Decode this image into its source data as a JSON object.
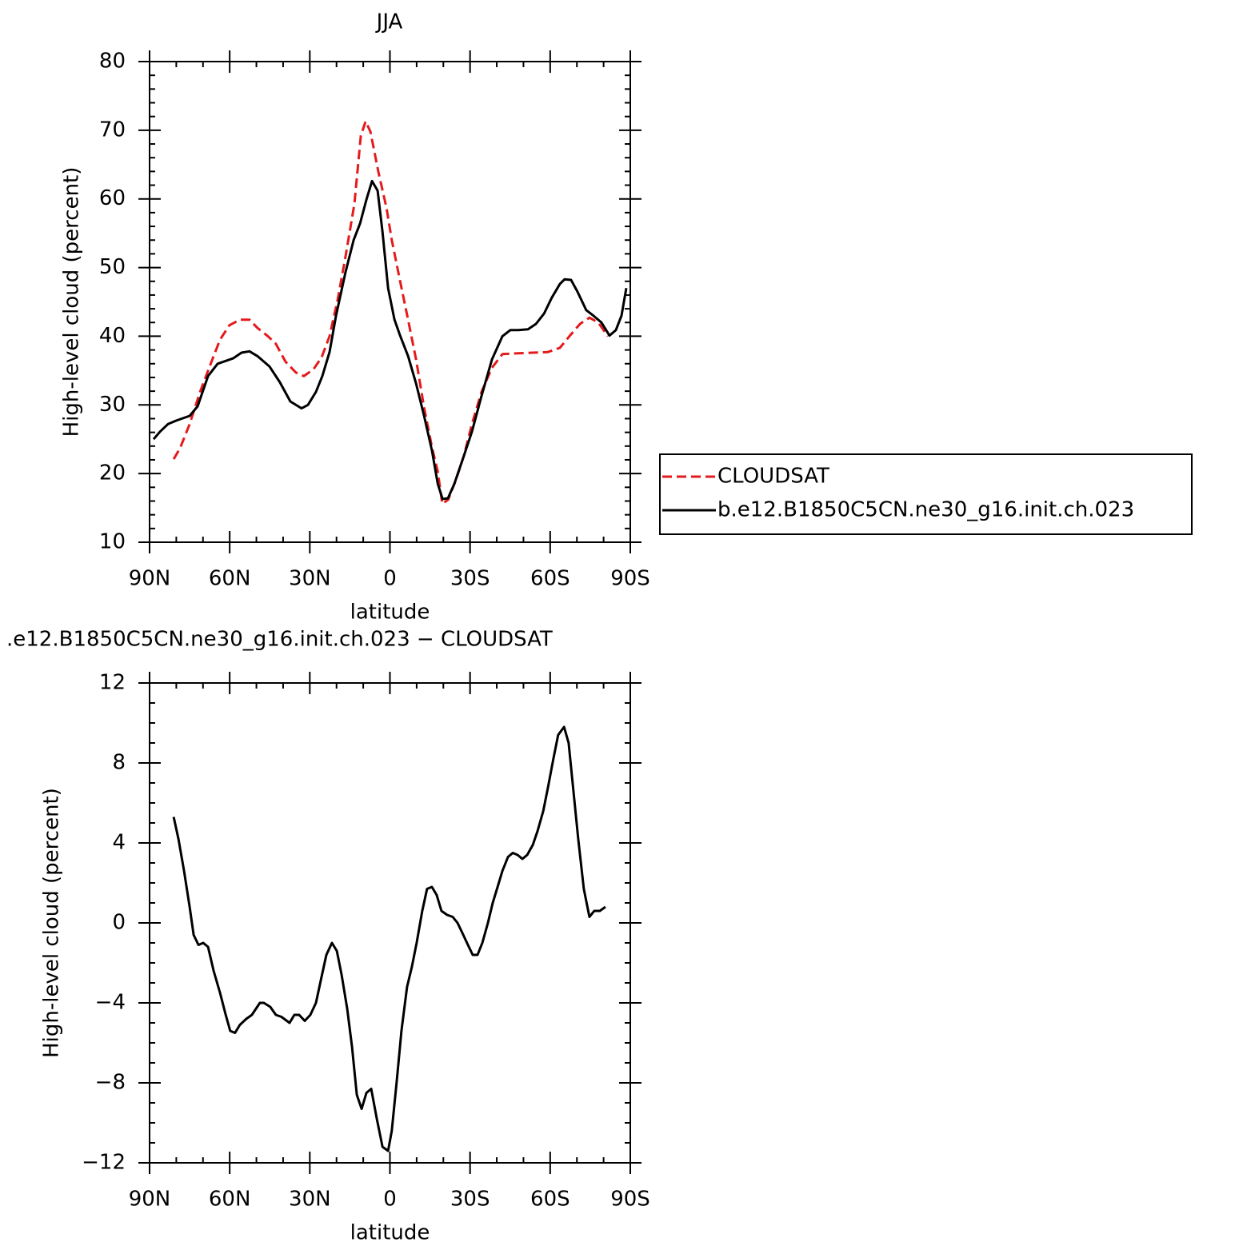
{
  "chart_data": [
    {
      "type": "line",
      "title": "JJA",
      "xlabel": "latitude",
      "ylabel": "High-level cloud (percent)",
      "xlim": [
        90,
        -90
      ],
      "xticks": [
        {
          "value": 90,
          "label": "90N"
        },
        {
          "value": 60,
          "label": "60N"
        },
        {
          "value": 30,
          "label": "30N"
        },
        0,
        {
          "value": -30,
          "label": "30S"
        },
        {
          "value": -60,
          "label": "60S"
        },
        {
          "value": -90,
          "label": "90S"
        }
      ],
      "ylim": [
        10,
        80
      ],
      "yticks": [
        10,
        20,
        30,
        40,
        50,
        60,
        70,
        80
      ],
      "legend": "right",
      "series": [
        {
          "name": "CLOUDSAT",
          "color": "#e41a1c",
          "dashed": true,
          "x": [
            81.0,
            78.6,
            75.0,
            71.1,
            67.5,
            63.6,
            60.1,
            56.2,
            52.6,
            49.6,
            45.7,
            42.7,
            39.1,
            35.2,
            32.2,
            28.6,
            25.6,
            22.6,
            19.6,
            16.6,
            13.3,
            10.9,
            9.1,
            7.3,
            4.3,
            1.3,
            -0.7,
            -3.7,
            -6.8,
            -9.8,
            -12.8,
            -15.8,
            -17.9,
            -19.6,
            -21.8,
            -24.7,
            -27.7,
            -30.7,
            -34.3,
            -38.2,
            -42.1,
            -47.2,
            -53.2,
            -59.1,
            -63.6,
            -67.2,
            -71.2,
            -74.7,
            -78.0,
            -81.6
          ],
          "values": [
            22.1,
            23.7,
            27.2,
            31.9,
            35.6,
            39.5,
            41.6,
            42.4,
            42.4,
            41.2,
            40.0,
            38.9,
            36.3,
            34.7,
            34.2,
            35.2,
            36.9,
            40.0,
            45.3,
            51.7,
            59.3,
            69.2,
            71.3,
            69.8,
            63.9,
            58.7,
            54.0,
            48.2,
            42.4,
            36.6,
            29.6,
            23.7,
            20.3,
            15.6,
            16.2,
            19.1,
            22.6,
            27.2,
            31.9,
            35.4,
            37.4,
            37.5,
            37.6,
            37.7,
            38.3,
            40.0,
            41.8,
            42.7,
            42.0,
            40.0
          ]
        },
        {
          "name": "b.e12.B1850C5CN.ne30_g16.init.ch.023",
          "color": "#000000",
          "dashed": false,
          "x": [
            88.5,
            86.1,
            83.1,
            80.1,
            75.0,
            72.0,
            68.1,
            64.5,
            61.5,
            58.6,
            55.6,
            52.6,
            49.6,
            45.1,
            41.2,
            37.3,
            33.1,
            30.7,
            27.7,
            25.3,
            22.6,
            20.2,
            16.6,
            13.6,
            11.2,
            8.8,
            6.7,
            4.6,
            2.8,
            0.7,
            -1.7,
            -3.8,
            -6.8,
            -9.8,
            -12.8,
            -15.8,
            -17.9,
            -19.7,
            -21.7,
            -24.1,
            -27.7,
            -30.7,
            -34.3,
            -38.2,
            -42.1,
            -45.1,
            -48.1,
            -51.7,
            -54.7,
            -57.7,
            -60.6,
            -63.6,
            -65.4,
            -67.8,
            -70.2,
            -73.5,
            -76.2,
            -79.2,
            -82.2,
            -84.6,
            -86.7,
            -88.5
          ],
          "values": [
            25.0,
            26.1,
            27.2,
            27.7,
            28.4,
            29.8,
            34.2,
            36.0,
            36.4,
            36.8,
            37.6,
            37.8,
            37.1,
            35.6,
            33.3,
            30.5,
            29.5,
            30.0,
            31.9,
            34.2,
            37.7,
            43.0,
            49.4,
            54.0,
            56.4,
            59.9,
            62.6,
            61.2,
            55.2,
            47.0,
            42.4,
            40.1,
            37.1,
            33.1,
            28.4,
            23.2,
            18.5,
            16.3,
            16.4,
            18.5,
            22.6,
            26.1,
            31.3,
            36.6,
            40.0,
            40.9,
            40.9,
            41.0,
            41.8,
            43.3,
            45.6,
            47.6,
            48.3,
            48.2,
            46.5,
            43.8,
            43.0,
            42.0,
            40.1,
            40.9,
            43.0,
            47.0
          ]
        }
      ]
    },
    {
      "type": "line",
      "title": ".e12.B1850C5CN.ne30_g16.init.ch.023 − CLOUDSAT",
      "xlabel": "latitude",
      "ylabel": "High-level cloud (percent)",
      "xlim": [
        90,
        -90
      ],
      "xticks": [
        {
          "value": 90,
          "label": "90N"
        },
        {
          "value": 60,
          "label": "60N"
        },
        {
          "value": 30,
          "label": "30N"
        },
        0,
        {
          "value": -30,
          "label": "30S"
        },
        {
          "value": -60,
          "label": "60S"
        },
        {
          "value": -90,
          "label": "90S"
        }
      ],
      "ylim": [
        -12,
        12
      ],
      "yticks": [
        {
          "value": -12,
          "label": "−12"
        },
        {
          "value": -8,
          "label": "−8"
        },
        {
          "value": -4,
          "label": "−4"
        },
        0,
        4,
        8,
        12
      ],
      "series": [
        {
          "color": "#000000",
          "dashed": false,
          "x": [
            81.0,
            79.2,
            77.1,
            75.0,
            73.5,
            71.7,
            69.9,
            68.1,
            66.0,
            63.6,
            61.5,
            59.8,
            58.0,
            56.2,
            53.8,
            51.7,
            48.7,
            47.2,
            44.8,
            42.7,
            40.6,
            37.6,
            35.8,
            34.0,
            31.9,
            29.8,
            27.7,
            25.6,
            23.8,
            21.7,
            19.9,
            18.1,
            16.0,
            14.2,
            12.4,
            10.6,
            8.8,
            7.0,
            4.9,
            2.8,
            0.7,
            -0.7,
            -2.5,
            -4.3,
            -6.4,
            -8.2,
            -10.0,
            -12.1,
            -13.9,
            -15.7,
            -17.5,
            -19.3,
            -21.4,
            -23.5,
            -25.3,
            -27.1,
            -29.2,
            -31.0,
            -32.8,
            -34.6,
            -36.7,
            -38.5,
            -40.3,
            -42.1,
            -44.2,
            -46.0,
            -47.8,
            -49.6,
            -51.4,
            -53.5,
            -55.3,
            -57.4,
            -59.2,
            -61.2,
            -63.0,
            -65.2,
            -66.9,
            -68.7,
            -70.5,
            -72.6,
            -74.7,
            -76.5,
            -78.6,
            -80.7
          ],
          "values": [
            5.3,
            4.2,
            2.6,
            0.8,
            -0.6,
            -1.1,
            -1.0,
            -1.2,
            -2.4,
            -3.5,
            -4.6,
            -5.4,
            -5.5,
            -5.1,
            -4.8,
            -4.6,
            -4.0,
            -4.0,
            -4.2,
            -4.6,
            -4.7,
            -5.0,
            -4.6,
            -4.6,
            -4.9,
            -4.6,
            -4.0,
            -2.7,
            -1.6,
            -1.0,
            -1.4,
            -2.6,
            -4.3,
            -6.2,
            -8.6,
            -9.3,
            -8.5,
            -8.3,
            -9.8,
            -11.2,
            -11.4,
            -10.4,
            -8.0,
            -5.4,
            -3.2,
            -2.2,
            -1.0,
            0.6,
            1.7,
            1.8,
            1.4,
            0.6,
            0.4,
            0.3,
            0.0,
            -0.5,
            -1.1,
            -1.6,
            -1.6,
            -1.0,
            0.0,
            1.0,
            1.8,
            2.6,
            3.3,
            3.5,
            3.4,
            3.2,
            3.4,
            3.9,
            4.6,
            5.6,
            6.8,
            8.2,
            9.4,
            9.8,
            9.0,
            6.6,
            4.2,
            1.7,
            0.3,
            0.6,
            0.6,
            0.8
          ]
        }
      ]
    }
  ]
}
